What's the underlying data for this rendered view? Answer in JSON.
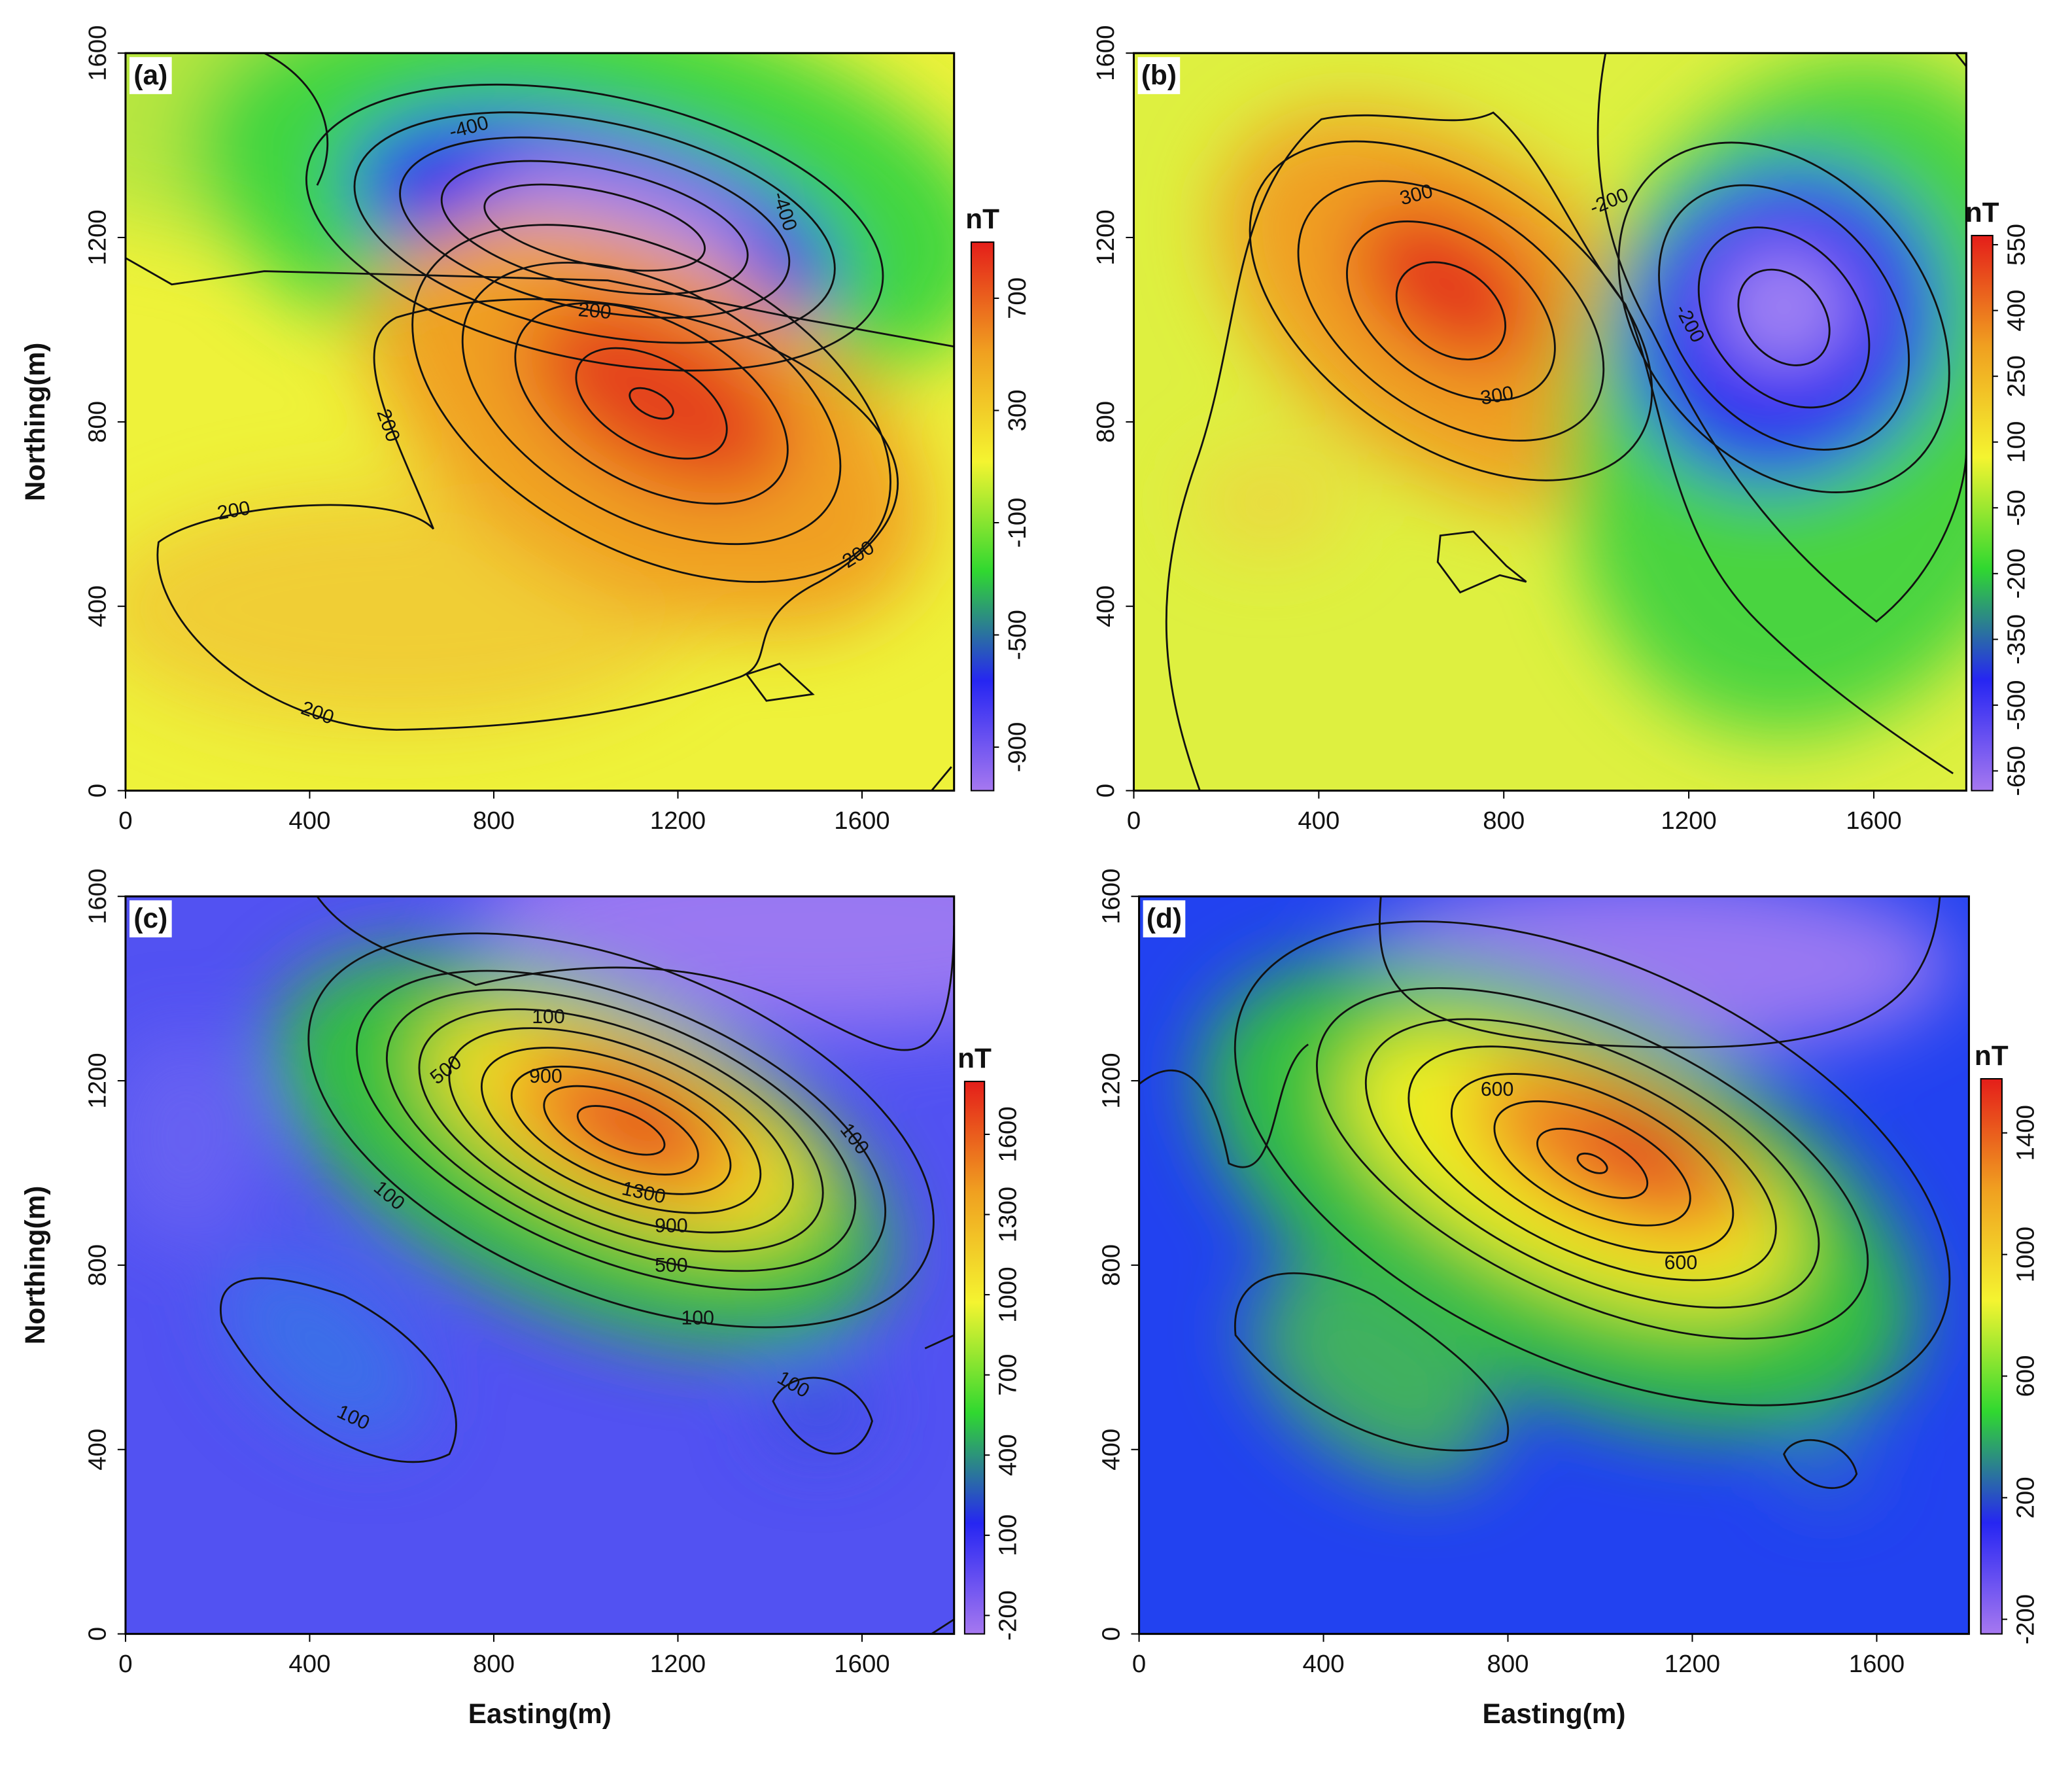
{
  "chart_data": [
    {
      "type": "contour",
      "panel_label": "(a)",
      "xlim": [
        0,
        1800
      ],
      "xticks": [
        0,
        400,
        800,
        1200,
        1600
      ],
      "ylim": [
        0,
        1600
      ],
      "yticks": [
        0,
        400,
        800,
        1200,
        1600
      ],
      "y_label": "Northing(m)",
      "colorbar_title": "nT",
      "clim": [
        -1055,
        900
      ],
      "cticks": [
        -900,
        -500,
        -100,
        300,
        700
      ],
      "colorscale": [
        "#a678f0",
        "#2626f2",
        "#30d830",
        "#f4f430",
        "#f0a020",
        "#e41e1a"
      ],
      "contour_labels": [
        -400,
        -400,
        200,
        200,
        200,
        200,
        200
      ]
    },
    {
      "type": "contour",
      "panel_label": "(b)",
      "xlim": [
        0,
        1800
      ],
      "xticks": [
        0,
        400,
        800,
        1200,
        1600
      ],
      "ylim": [
        0,
        1600
      ],
      "yticks": [
        0,
        400,
        800,
        1200,
        1600
      ],
      "colorbar_title": "nT",
      "clim": [
        -695,
        571
      ],
      "cticks": [
        -650,
        -500,
        -350,
        -200,
        -50,
        100,
        250,
        400,
        550
      ],
      "colorscale": [
        "#a678f0",
        "#2626f2",
        "#30d830",
        "#f4f430",
        "#f0a020",
        "#e41e1a"
      ],
      "contour_labels": [
        300,
        300,
        -200,
        -200
      ]
    },
    {
      "type": "contour",
      "panel_label": "(c)",
      "xlim": [
        0,
        1800
      ],
      "xticks": [
        0,
        400,
        800,
        1200,
        1600
      ],
      "ylim": [
        0,
        1600
      ],
      "yticks": [
        0,
        400,
        800,
        1200,
        1600
      ],
      "x_label": "Easting(m)",
      "y_label": "Northing(m)",
      "colorbar_title": "nT",
      "clim": [
        -269,
        1798
      ],
      "cticks": [
        -200,
        100,
        400,
        700,
        1000,
        1300,
        1600
      ],
      "colorscale": [
        "#a678f0",
        "#2626f2",
        "#30d830",
        "#f4f430",
        "#f0a020",
        "#e41e1a"
      ],
      "contour_labels": [
        100,
        500,
        900,
        1300,
        900,
        500,
        100,
        100,
        100,
        100,
        100
      ]
    },
    {
      "type": "contour",
      "panel_label": "(d)",
      "xlim": [
        0,
        1800
      ],
      "xticks": [
        0,
        400,
        800,
        1200,
        1600
      ],
      "ylim": [
        0,
        1600
      ],
      "yticks": [
        0,
        400,
        800,
        1200,
        1600
      ],
      "x_label": "Easting(m)",
      "colorbar_title": "nT",
      "clim": [
        -248,
        1578
      ],
      "cticks": [
        -200,
        200,
        600,
        1000,
        1400
      ],
      "colorscale": [
        "#a678f0",
        "#2626f2",
        "#30d830",
        "#f4f430",
        "#f0a020",
        "#e41e1a"
      ],
      "contour_labels": [
        600,
        600
      ]
    }
  ]
}
